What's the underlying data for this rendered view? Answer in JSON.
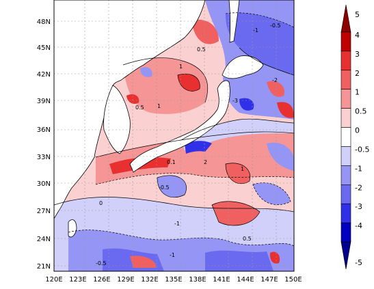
{
  "map": {
    "lon_ticks": [
      "120E",
      "123E",
      "126E",
      "129E",
      "132E",
      "135E",
      "138E",
      "141E",
      "144E",
      "147E",
      "150E"
    ],
    "lat_ticks": [
      "21N",
      "24N",
      "27N",
      "30N",
      "33N",
      "36N",
      "39N",
      "42N",
      "45N",
      "48N"
    ],
    "extent": {
      "lon": [
        120,
        150
      ],
      "lat": [
        19.5,
        49.5
      ]
    }
  },
  "colorbar": {
    "labels": [
      "5",
      "4",
      "3",
      "2",
      "1",
      "0.5",
      "0",
      "-0.5",
      "-1",
      "-2",
      "-3",
      "-4",
      "-5"
    ],
    "colors": [
      "#8c0000",
      "#c00000",
      "#e83030",
      "#f06060",
      "#f59595",
      "#fbd0d0",
      "#ffffff",
      "#d0d0fb",
      "#9595f5",
      "#6a6af0",
      "#3030e8",
      "#0000c0",
      "#00008c"
    ]
  },
  "contour_labels": [
    "-1",
    "-0.5",
    "0.5",
    "1",
    "-2",
    "2",
    "-3",
    "0",
    "0.1"
  ]
}
